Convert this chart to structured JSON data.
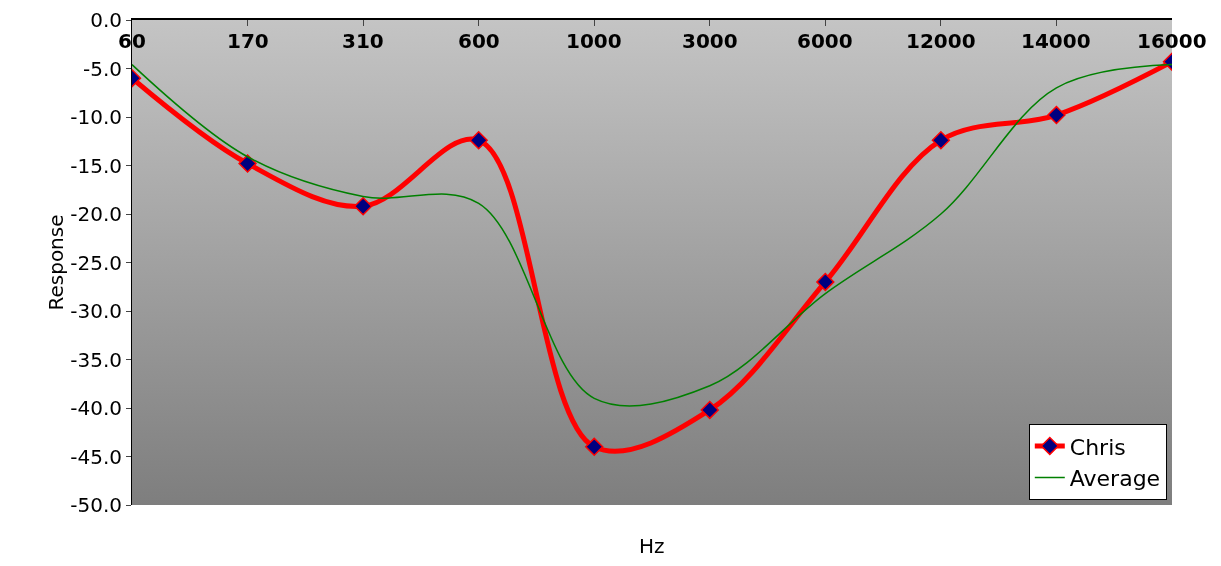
{
  "chart_data": {
    "type": "line",
    "xlabel": "Hz",
    "ylabel": "Response",
    "categories": [
      "60",
      "170",
      "310",
      "600",
      "1000",
      "3000",
      "6000",
      "12000",
      "14000",
      "16000"
    ],
    "ylim": [
      -50,
      0
    ],
    "yticks": [
      {
        "value": -50,
        "label": "-50.0"
      },
      {
        "value": -45,
        "label": "-45.0"
      },
      {
        "value": -40,
        "label": "-40.0"
      },
      {
        "value": -35,
        "label": "-35.0"
      },
      {
        "value": -30,
        "label": "-30.0"
      },
      {
        "value": -25,
        "label": "-25.0"
      },
      {
        "value": -20,
        "label": "-20.0"
      },
      {
        "value": -15,
        "label": "-15.0"
      },
      {
        "value": -10,
        "label": "-10.0"
      },
      {
        "value": -5,
        "label": "-5.0"
      },
      {
        "value": 0,
        "label": "0.0"
      }
    ],
    "grid": false,
    "legend": "bottom right",
    "series": [
      {
        "name": "Chris",
        "color": "#ff0000",
        "marker": "diamond",
        "values": [
          -6.0,
          -14.8,
          -19.2,
          -12.4,
          -44.0,
          -40.2,
          -27.0,
          -12.4,
          -9.8,
          -4.3
        ]
      },
      {
        "name": "Average",
        "color": "#008000",
        "marker": "none",
        "values": [
          -4.6,
          -14.1,
          -18.2,
          -18.9,
          -39.0,
          -37.7,
          -28.2,
          -20.0,
          -7.0,
          -4.6
        ]
      }
    ]
  }
}
